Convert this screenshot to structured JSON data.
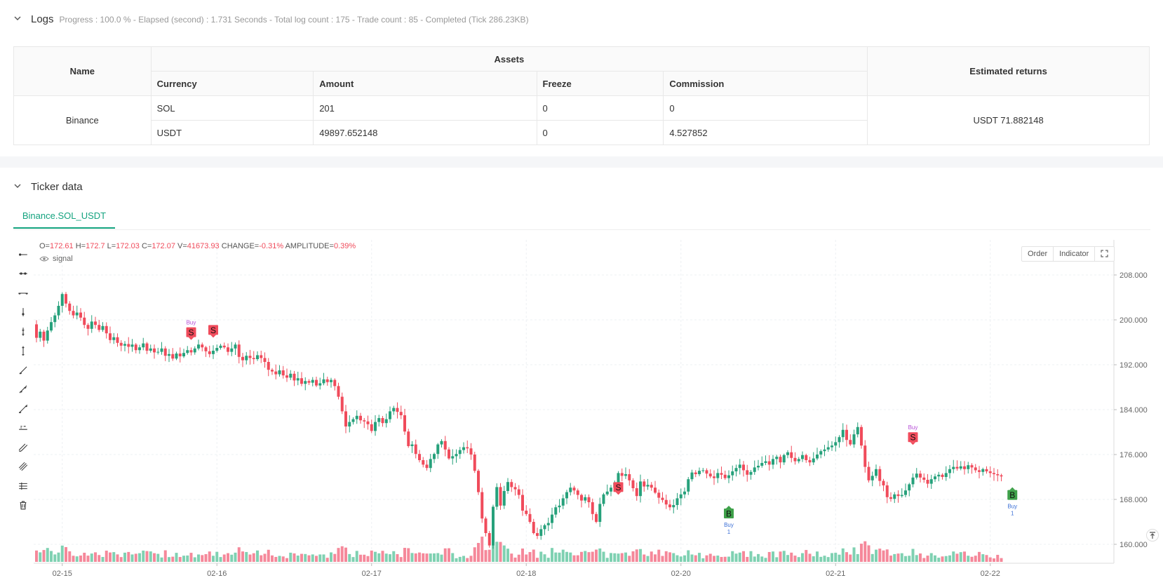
{
  "logs": {
    "title": "Logs",
    "progress": "Progress : 100.0 % - Elapsed (second) : 1.731  Seconds - Total log count : 175 - Trade count : 85 - Completed (Tick 286.23KB)",
    "table": {
      "headers": {
        "name": "Name",
        "assets": "Assets",
        "estimated": "Estimated returns"
      },
      "subheaders": [
        "Currency",
        "Amount",
        "Freeze",
        "Commission"
      ],
      "exchange": "Binance",
      "rows": [
        {
          "currency": "SOL",
          "amount": "201",
          "freeze": "0",
          "commission": "0"
        },
        {
          "currency": "USDT",
          "amount": "49897.652148",
          "freeze": "0",
          "commission": "4.527852"
        }
      ],
      "estimated_returns": "USDT 71.882148"
    }
  },
  "ticker": {
    "title": "Ticker data",
    "tab": "Binance.SOL_USDT",
    "ohlc": {
      "o_label": "O=",
      "o": "172.61",
      "h_label": "H=",
      "h": "172.7",
      "l_label": "L=",
      "l": "172.03",
      "c_label": "C=",
      "c": "172.07",
      "v_label": "V=",
      "v": "41673.93",
      "change_label": "CHANGE=",
      "change": "-0.31%",
      "amp_label": "AMPLITUDE=",
      "amp": "0.39%"
    },
    "signal_label": "signal",
    "buttons": {
      "order": "Order",
      "indicator": "Indicator"
    },
    "tools": [
      "horizontal-ray-icon",
      "horizontal-segment-icon",
      "horizontal-line-icon",
      "vertical-ray-icon",
      "vertical-segment-icon",
      "vertical-line-icon",
      "trend-ray-icon",
      "trend-segment-icon",
      "trend-line-icon",
      "price-line-icon",
      "parallel-lines-icon",
      "fib-lines-icon",
      "price-range-icon",
      "trash-icon"
    ],
    "colors": {
      "up": "#26a17b",
      "down": "#f04b5b",
      "accent": "#14a37f"
    }
  },
  "chart_data": {
    "type": "candlestick",
    "y_ticks": [
      "208.000",
      "200.000",
      "192.000",
      "184.000",
      "176.000",
      "168.000",
      "160.000"
    ],
    "y_tick_values": [
      208,
      200,
      192,
      184,
      176,
      168,
      160
    ],
    "x_ticks": [
      "02-15",
      "02-16",
      "02-17",
      "02-18",
      "02-20",
      "02-21",
      "02-22"
    ],
    "x_tick_index": [
      7,
      49,
      91,
      133,
      175,
      217,
      259
    ],
    "ylim": [
      156.5,
      212.5
    ],
    "closes": [
      196.8,
      197.9,
      196.3,
      198.1,
      199.6,
      200.8,
      202.5,
      204.6,
      202.9,
      201.6,
      200.8,
      201.3,
      200.4,
      199.1,
      198.4,
      199.7,
      199.1,
      198.2,
      198.9,
      197.6,
      196.4,
      196.9,
      195.9,
      195.4,
      195.7,
      195.2,
      195.6,
      194.6,
      195.1,
      195.8,
      194.5,
      194.9,
      194.2,
      194.3,
      194.9,
      193.6,
      193.9,
      193.1,
      194.0,
      193.5,
      194.1,
      194.6,
      194.2,
      194.9,
      195.6,
      195.1,
      194.4,
      193.9,
      194.5,
      195.0,
      195.4,
      195.1,
      194.3,
      194.9,
      195.6,
      193.4,
      192.8,
      193.6,
      193.2,
      193.0,
      193.7,
      193.2,
      192.5,
      191.1,
      190.8,
      190.3,
      191.0,
      190.1,
      189.7,
      190.4,
      189.2,
      189.6,
      188.6,
      189.1,
      188.8,
      189.3,
      188.3,
      188.7,
      189.4,
      188.9,
      189.3,
      188.2,
      186.3,
      183.7,
      181.0,
      181.8,
      182.3,
      182.9,
      182.1,
      181.9,
      181.4,
      180.2,
      181.8,
      182.5,
      181.6,
      182.3,
      183.7,
      184.3,
      183.6,
      183.0,
      180.1,
      177.5,
      177.8,
      176.1,
      175.0,
      174.2,
      173.6,
      175.2,
      176.1,
      177.8,
      178.4,
      176.9,
      175.3,
      175.7,
      176.1,
      176.8,
      177.3,
      177.1,
      176.0,
      173.1,
      169.3,
      164.6,
      162.0,
      159.8,
      166.7,
      170.2,
      166.9,
      169.5,
      171.1,
      170.2,
      169.8,
      168.8,
      166.0,
      165.4,
      164.0,
      162.0,
      161.5,
      162.7,
      163.4,
      163.8,
      165.3,
      166.6,
      166.9,
      168.2,
      169.3,
      170.1,
      169.6,
      168.8,
      167.8,
      168.4,
      167.5,
      165.4,
      164.0,
      167.2,
      168.9,
      169.4,
      170.1,
      171.0,
      172.7,
      172.2,
      172.5,
      171.4,
      170.0,
      168.6,
      171.2,
      170.3,
      170.6,
      170.1,
      169.2,
      168.3,
      167.9,
      167.1,
      166.6,
      167.0,
      168.2,
      168.9,
      169.4,
      171.6,
      172.8,
      172.5,
      173.1,
      173.2,
      172.6,
      172.1,
      171.8,
      172.7,
      172.4,
      171.8,
      172.3,
      173.0,
      173.6,
      174.2,
      173.2,
      172.4,
      172.9,
      173.7,
      174.0,
      174.5,
      174.8,
      174.2,
      175.2,
      175.6,
      174.6,
      175.9,
      176.4,
      175.4,
      174.8,
      175.2,
      175.9,
      175.0,
      174.6,
      175.3,
      176.0,
      176.6,
      176.9,
      177.3,
      177.6,
      178.2,
      179.1,
      180.4,
      178.6,
      177.8,
      179.6,
      180.9,
      177.6,
      173.8,
      171.4,
      172.2,
      173.4,
      171.3,
      170.5,
      168.4,
      168.1,
      168.9,
      168.6,
      168.8,
      169.6,
      170.7,
      171.9,
      172.6,
      171.9,
      171.5,
      170.8,
      171.6,
      172.1,
      172.4,
      172.0,
      172.7,
      173.4,
      173.8,
      173.5,
      173.9,
      173.4,
      174.1,
      173.7,
      173.2,
      172.9,
      173.4,
      173.0,
      172.7,
      172.5,
      172.3,
      172.1
    ],
    "markers": [
      {
        "label": "S",
        "side": "sell",
        "index": 42,
        "price": 197.8,
        "top": "Buy"
      },
      {
        "label": "S",
        "side": "sell",
        "index": 48,
        "price": 198.2
      },
      {
        "label": "S",
        "side": "sell",
        "index": 158,
        "price": 170.2
      },
      {
        "label": "B",
        "side": "buy",
        "index": 188,
        "price": 165.5,
        "bottom": "Buy",
        "count": "1"
      },
      {
        "label": "S",
        "side": "sell",
        "index": 238,
        "price": 179.1,
        "top": "Buy"
      },
      {
        "label": "B",
        "side": "buy",
        "index": 265,
        "price": 168.8,
        "bottom": "Buy",
        "count": "1"
      }
    ]
  }
}
